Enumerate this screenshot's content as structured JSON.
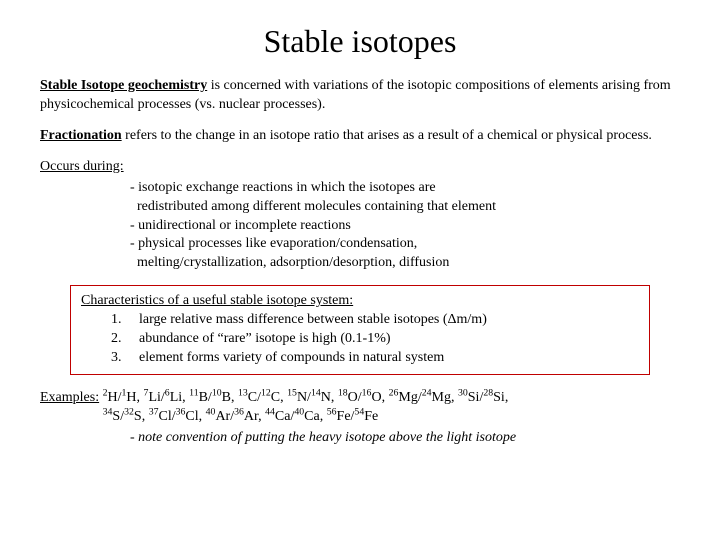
{
  "title": "Stable isotopes",
  "intro": {
    "term": "Stable Isotope geochemistry",
    "rest": " is concerned with variations of the isotopic compositions of elements arising from physicochemical processes (vs. nuclear processes)."
  },
  "fractionation": {
    "term": "Fractionation",
    "rest": " refers to the change in an isotope ratio that arises as a result of a chemical or physical process."
  },
  "occurs_label": "Occurs during:",
  "bullets": {
    "b1a": "- isotopic exchange reactions in which the isotopes are",
    "b1b": "  redistributed among different molecules containing that element",
    "b2": "- unidirectional or incomplete reactions",
    "b3a": "- physical processes like evaporation/condensation,",
    "b3b": "  melting/crystallization, adsorption/desorption, diffusion"
  },
  "box": {
    "heading": "Characteristics of a useful stable isotope system:",
    "i1": "1.     large relative mass difference between stable isotopes (Δm/m)",
    "i2": "2.     abundance of “rare” isotope is high (0.1-1%)",
    "i3": "3.     element forms variety of compounds in natural system",
    "border_color": "#c00000",
    "border_width": "1px"
  },
  "examples_label": "Examples:",
  "examples": [
    {
      "h": "2",
      "l": "1",
      "el": "H"
    },
    {
      "h": "7",
      "l": "6",
      "el": "Li"
    },
    {
      "h": "11",
      "l": "10",
      "el": "B"
    },
    {
      "h": "13",
      "l": "12",
      "el": "C"
    },
    {
      "h": "15",
      "l": "14",
      "el": "N"
    },
    {
      "h": "18",
      "l": "16",
      "el": "O"
    },
    {
      "h": "26",
      "l": "24",
      "el": "Mg"
    },
    {
      "h": "30",
      "l": "28",
      "el": "Si"
    },
    {
      "h": "34",
      "l": "32",
      "el": "S"
    },
    {
      "h": "37",
      "l": "36",
      "el": "Cl"
    },
    {
      "h": "40",
      "l": "36",
      "el": "Ar"
    },
    {
      "h": "44",
      "l": "40",
      "el": "Ca"
    },
    {
      "h": "56",
      "l": "54",
      "el": "Fe"
    }
  ],
  "note": "- note convention of putting the heavy isotope above the light isotope",
  "colors": {
    "background": "#ffffff",
    "text": "#000000"
  }
}
